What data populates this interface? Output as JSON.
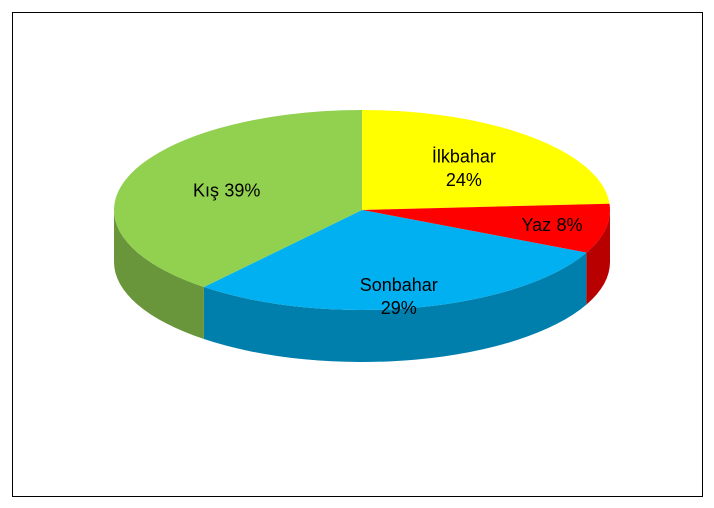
{
  "chart_data": {
    "type": "pie3d",
    "categories": [
      "İlkbahar",
      "Yaz",
      "Sonbahar",
      "Kış"
    ],
    "values": [
      24,
      8,
      29,
      39
    ],
    "value_labels": [
      "24%",
      "8%",
      "29%",
      "39%"
    ],
    "colors": [
      "#ffff00",
      "#ff0000",
      "#00b0f0",
      "#92d050"
    ]
  }
}
